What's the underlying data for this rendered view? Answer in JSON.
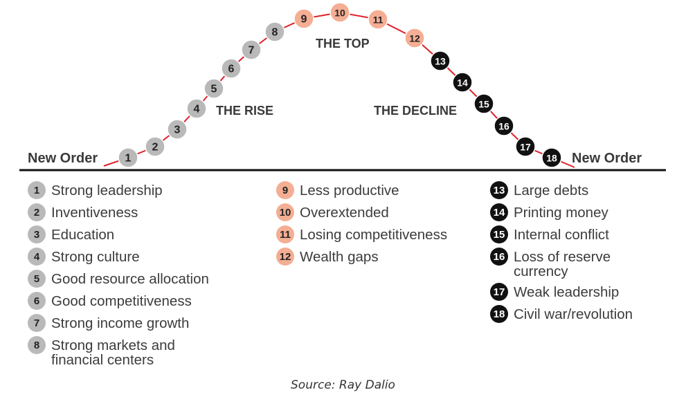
{
  "diagram": {
    "left_label": "New Order",
    "right_label": "New Order",
    "rise_label": "THE RISE",
    "top_label": "THE TOP",
    "decline_label": "THE DECLINE"
  },
  "stages": [
    {
      "n": "1",
      "label": "Strong leadership",
      "phase": "rise"
    },
    {
      "n": "2",
      "label": "Inventiveness",
      "phase": "rise"
    },
    {
      "n": "3",
      "label": "Education",
      "phase": "rise"
    },
    {
      "n": "4",
      "label": "Strong culture",
      "phase": "rise"
    },
    {
      "n": "5",
      "label": "Good resource allocation",
      "phase": "rise"
    },
    {
      "n": "6",
      "label": "Good competitiveness",
      "phase": "rise"
    },
    {
      "n": "7",
      "label": "Strong income growth",
      "phase": "rise"
    },
    {
      "n": "8",
      "label": "Strong markets and financial centers",
      "phase": "rise"
    },
    {
      "n": "9",
      "label": "Less productive",
      "phase": "top"
    },
    {
      "n": "10",
      "label": "Overextended",
      "phase": "top"
    },
    {
      "n": "11",
      "label": "Losing competitiveness",
      "phase": "top"
    },
    {
      "n": "12",
      "label": "Wealth gaps",
      "phase": "top"
    },
    {
      "n": "13",
      "label": "Large debts",
      "phase": "decline"
    },
    {
      "n": "14",
      "label": "Printing money",
      "phase": "decline"
    },
    {
      "n": "15",
      "label": "Internal conflict",
      "phase": "decline"
    },
    {
      "n": "16",
      "label": "Loss of reserve currency",
      "phase": "decline"
    },
    {
      "n": "17",
      "label": "Weak leadership",
      "phase": "decline"
    },
    {
      "n": "18",
      "label": "Civil war/revolution",
      "phase": "decline"
    }
  ],
  "colors": {
    "rise": "#b9b9b9",
    "top": "#f4ae94",
    "decline": "#111111",
    "curve": "#e0202a",
    "baseline": "#111111"
  },
  "source": "Source: Ray Dalio"
}
